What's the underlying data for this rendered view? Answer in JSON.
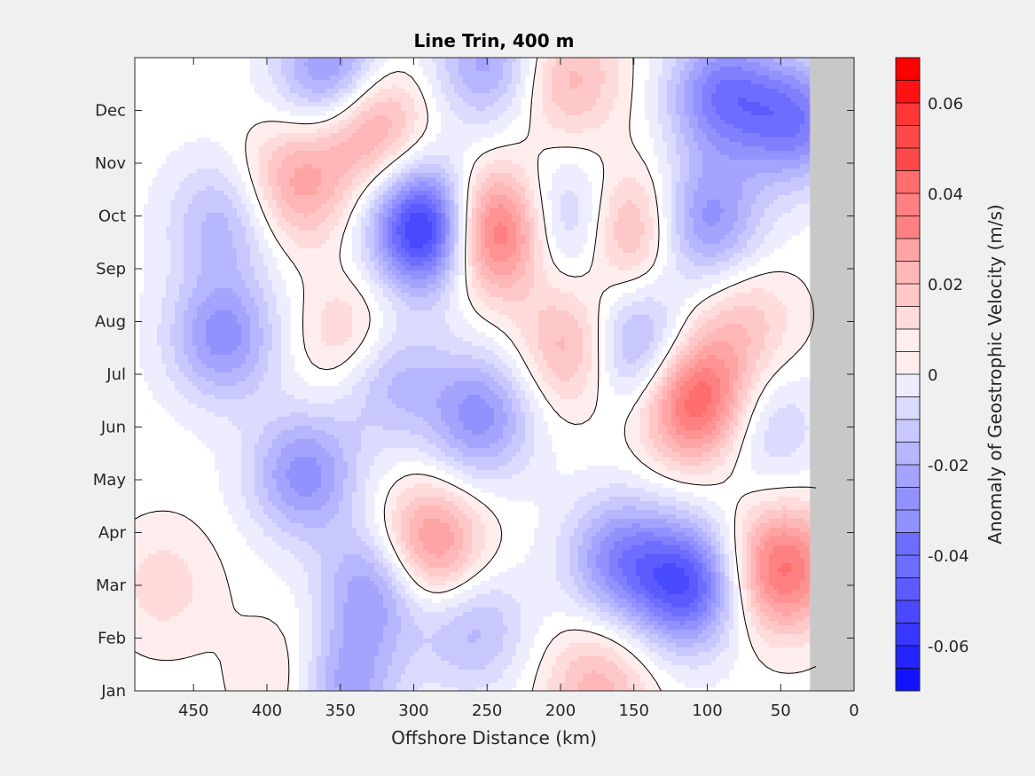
{
  "chart_data": {
    "type": "heatmap",
    "subtype": "filled-contour",
    "title": "Line Trin, 400 m",
    "xlabel": "Offshore Distance (km)",
    "ylabel": "",
    "colorbar_label": "Anomaly of Geostrophic Velocity (m/s)",
    "xlim": [
      490,
      0
    ],
    "x_direction": "reversed",
    "x_ticks": [
      450,
      400,
      350,
      300,
      250,
      200,
      150,
      100,
      50,
      0
    ],
    "y_ticks": [
      "Jan",
      "Feb",
      "Mar",
      "Apr",
      "May",
      "Jun",
      "Jul",
      "Aug",
      "Sep",
      "Oct",
      "Nov",
      "Dec"
    ],
    "clim": [
      -0.07,
      0.07
    ],
    "colorbar_ticks": [
      -0.06,
      -0.04,
      -0.02,
      0,
      0.02,
      0.04,
      0.06
    ],
    "colorbar_tick_labels": [
      "-0.06",
      "-0.04",
      "-0.02",
      "0",
      "0.02",
      "0.04",
      "0.06"
    ],
    "contour_interval": 0.005,
    "zero_contour": "black line",
    "nodata_region_km": [
      30,
      0
    ],
    "nodata_color": "#c8c8c8",
    "colormap": {
      "negative": "#0000ff",
      "zero": "#ffffff",
      "positive": "#ff0000"
    },
    "features": [
      {
        "x": 290,
        "month": 9.75,
        "value": -0.065
      },
      {
        "x": 250,
        "month": 9.7,
        "value": 0.05
      },
      {
        "x": 108,
        "month": 6.5,
        "value": 0.045
      },
      {
        "x": 160,
        "month": 9.8,
        "value": 0.035
      },
      {
        "x": 330,
        "month": 11.8,
        "value": 0.03
      },
      {
        "x": 113,
        "month": 3.0,
        "value": -0.045
      },
      {
        "x": 50,
        "month": 3.3,
        "value": 0.04
      },
      {
        "x": 290,
        "month": 3.7,
        "value": 0.035
      },
      {
        "x": 355,
        "month": 12.7,
        "value": -0.035
      },
      {
        "x": 90,
        "month": 12.3,
        "value": -0.035
      },
      {
        "x": 40,
        "month": 11.8,
        "value": -0.035
      },
      {
        "x": 255,
        "month": 6.2,
        "value": -0.03
      },
      {
        "x": 375,
        "month": 5.1,
        "value": -0.03
      },
      {
        "x": 325,
        "month": 3.0,
        "value": -0.03
      },
      {
        "x": 430,
        "month": 7.7,
        "value": -0.03
      },
      {
        "x": 185,
        "month": 9.9,
        "value": -0.03
      },
      {
        "x": 100,
        "month": 9.9,
        "value": -0.03
      },
      {
        "x": 150,
        "month": 7.5,
        "value": -0.03
      },
      {
        "x": 380,
        "month": 10.6,
        "value": 0.025
      },
      {
        "x": 190,
        "month": 7.5,
        "value": 0.025
      },
      {
        "x": 160,
        "month": 3.5,
        "value": -0.03
      },
      {
        "x": 350,
        "month": 1.1,
        "value": -0.03
      },
      {
        "x": 430,
        "month": 9.9,
        "value": -0.02
      },
      {
        "x": 340,
        "month": 7.6,
        "value": 0.02
      },
      {
        "x": 320,
        "month": 7.0,
        "value": -0.025
      },
      {
        "x": 250,
        "month": 12.9,
        "value": -0.025
      },
      {
        "x": 195,
        "month": 12.6,
        "value": 0.02
      },
      {
        "x": 75,
        "month": 8.0,
        "value": 0.015
      },
      {
        "x": 60,
        "month": 6.0,
        "value": -0.015
      },
      {
        "x": 380,
        "month": 1.2,
        "value": 0.015
      },
      {
        "x": 175,
        "month": 1.1,
        "value": 0.02
      },
      {
        "x": 260,
        "month": 2.2,
        "value": -0.02
      },
      {
        "x": 470,
        "month": 3.0,
        "value": 0.01
      }
    ]
  }
}
